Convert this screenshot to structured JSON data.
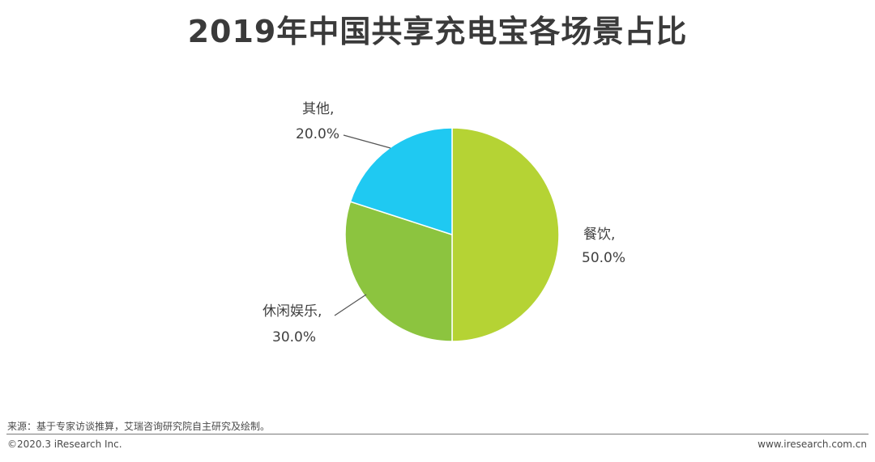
{
  "chart_data": {
    "type": "pie",
    "title": "2019年中国共享充电宝各场景占比",
    "slices": [
      {
        "name": "餐饮",
        "name_label": "餐饮,",
        "value": 50.0,
        "value_label": "50.0%",
        "color": "#b5d334"
      },
      {
        "name": "休闲娱乐",
        "name_label": "休闲娱乐,",
        "value": 30.0,
        "value_label": "30.0%",
        "color": "#8cc43f"
      },
      {
        "name": "其他",
        "name_label": "其他,",
        "value": 20.0,
        "value_label": "20.0%",
        "color": "#1fc9f2"
      }
    ],
    "leader_line_color": "#555555"
  },
  "footer": {
    "source": "来源：基于专家访谈推算，艾瑞咨询研究院自主研究及绘制。",
    "copyright": "©2020.3 iResearch Inc.",
    "website": "www.iresearch.com.cn"
  }
}
